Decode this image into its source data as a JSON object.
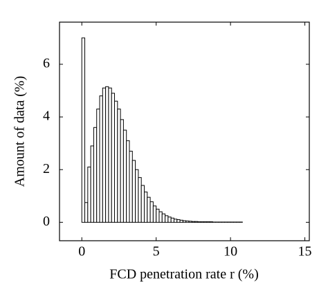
{
  "chart_data": {
    "type": "histogram",
    "xlabel": "FCD penetration rate r (%)",
    "ylabel": "Amount of data (%)",
    "bins": [
      0,
      0.2,
      0.4,
      0.6,
      0.8,
      1,
      1.2,
      1.4,
      1.6,
      1.8,
      2,
      2.2,
      2.4,
      2.6,
      2.8,
      3,
      3.2,
      3.4,
      3.6,
      3.8,
      4,
      4.2,
      4.4,
      4.6,
      4.8,
      5,
      5.2,
      5.4,
      5.6,
      5.8,
      6,
      6.2,
      6.4,
      6.6,
      6.8,
      7,
      7.2,
      7.4,
      7.6,
      7.8,
      8,
      8.2,
      8.4,
      8.6,
      8.8,
      9,
      9.2,
      9.4,
      9.6,
      9.8,
      10,
      10.2,
      10.4,
      10.6,
      10.8,
      11,
      11.2,
      11.4,
      11.6,
      11.8,
      12,
      12.2,
      12.4,
      12.6,
      12.8,
      13,
      13.2,
      13.4,
      13.6,
      13.8,
      14,
      14.2,
      14.4,
      14.6,
      14.8,
      15
    ],
    "values": [
      7.0,
      0.75,
      2.1,
      2.9,
      3.6,
      4.3,
      4.8,
      5.1,
      5.15,
      5.1,
      4.9,
      4.6,
      4.3,
      3.9,
      3.5,
      3.1,
      2.7,
      2.35,
      2.0,
      1.7,
      1.4,
      1.15,
      0.95,
      0.78,
      0.62,
      0.5,
      0.4,
      0.32,
      0.25,
      0.2,
      0.16,
      0.12,
      0.1,
      0.08,
      0.06,
      0.05,
      0.04,
      0.03,
      0.03,
      0.02,
      0.02,
      0.02,
      0.02,
      0.02,
      0.01,
      0.01,
      0.01,
      0.01,
      0.01,
      0.01,
      0.01,
      0.01,
      0.01,
      0.01,
      0,
      0,
      0,
      0,
      0,
      0,
      0,
      0,
      0,
      0,
      0,
      0,
      0,
      0,
      0,
      0,
      0,
      0,
      0,
      0,
      0
    ],
    "color": "#ffffff",
    "xlim": [
      -1.5,
      15.3
    ],
    "ylim": [
      -0.7,
      7.6
    ],
    "xticks": [
      0,
      5,
      10,
      15
    ],
    "yticks": [
      0,
      2,
      4,
      6
    ]
  }
}
